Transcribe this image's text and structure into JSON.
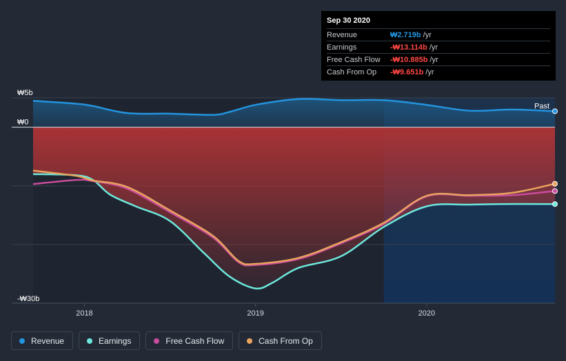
{
  "tooltip": {
    "date": "Sep 30 2020",
    "rows": [
      {
        "label": "Revenue",
        "value": "₩2.719b",
        "unit": "/yr",
        "color": "#2394df"
      },
      {
        "label": "Earnings",
        "value": "-₩13.114b",
        "unit": "/yr",
        "color": "#ff4845"
      },
      {
        "label": "Free Cash Flow",
        "value": "-₩10.885b",
        "unit": "/yr",
        "color": "#ff4845"
      },
      {
        "label": "Cash From Op",
        "value": "-₩9.651b",
        "unit": "/yr",
        "color": "#ff4845"
      }
    ]
  },
  "legend": [
    {
      "label": "Revenue",
      "color": "#2394df"
    },
    {
      "label": "Earnings",
      "color": "#6ce8dc"
    },
    {
      "label": "Free Cash Flow",
      "color": "#c94c9c"
    },
    {
      "label": "Cash From Op",
      "color": "#e9a45e"
    }
  ],
  "chart_data": {
    "type": "line",
    "title": "",
    "xlabel": "",
    "ylabel": "",
    "unit": "KRW billions",
    "y_tick_labels": [
      {
        "value": 5,
        "label": "₩5b"
      },
      {
        "value": 0,
        "label": "₩0"
      },
      {
        "value": -30,
        "label": "-₩30b"
      }
    ],
    "ylim": [
      -30,
      5
    ],
    "xlim": [
      2017.7,
      2020.75
    ],
    "x_ticks": [
      {
        "value": 2018,
        "label": "2018"
      },
      {
        "value": 2019,
        "label": "2019"
      },
      {
        "value": 2020,
        "label": "2020"
      }
    ],
    "past_marker": {
      "label": "Past",
      "start_x": 2019.75
    },
    "series": [
      {
        "name": "Revenue",
        "color": "#2394df",
        "x": [
          2017.7,
          2017.95,
          2018.05,
          2018.25,
          2018.5,
          2018.75,
          2018.85,
          2019.0,
          2019.25,
          2019.5,
          2019.75,
          2020.0,
          2020.25,
          2020.5,
          2020.75
        ],
        "y": [
          4.5,
          4.0,
          3.6,
          2.4,
          2.3,
          2.1,
          2.6,
          3.8,
          4.8,
          4.6,
          4.6,
          3.8,
          2.8,
          3.0,
          2.719
        ]
      },
      {
        "name": "Earnings",
        "color": "#6ce8dc",
        "x": [
          2017.7,
          2017.95,
          2018.05,
          2018.15,
          2018.3,
          2018.5,
          2018.7,
          2018.85,
          2019.0,
          2019.1,
          2019.25,
          2019.5,
          2019.75,
          2020.0,
          2020.25,
          2020.5,
          2020.75
        ],
        "y": [
          -8.0,
          -8.2,
          -9.0,
          -11.5,
          -13.5,
          -16.0,
          -21.5,
          -25.5,
          -27.5,
          -26.5,
          -24.0,
          -22.0,
          -17.0,
          -13.5,
          -13.2,
          -13.1,
          -13.114
        ]
      },
      {
        "name": "Free Cash Flow",
        "color": "#c94c9c",
        "x": [
          2017.7,
          2017.95,
          2018.05,
          2018.25,
          2018.5,
          2018.75,
          2018.9,
          2019.0,
          2019.25,
          2019.5,
          2019.75,
          2020.0,
          2020.25,
          2020.5,
          2020.75
        ],
        "y": [
          -9.7,
          -9.0,
          -9.2,
          -10.5,
          -14.5,
          -18.8,
          -23.0,
          -23.5,
          -22.5,
          -19.8,
          -16.5,
          -11.8,
          -11.7,
          -11.6,
          -10.885
        ]
      },
      {
        "name": "Cash From Op",
        "color": "#e9a45e",
        "x": [
          2017.7,
          2017.95,
          2018.05,
          2018.25,
          2018.5,
          2018.75,
          2018.9,
          2019.0,
          2019.25,
          2019.5,
          2019.75,
          2020.0,
          2020.25,
          2020.5,
          2020.75
        ],
        "y": [
          -7.4,
          -8.3,
          -9.1,
          -10.2,
          -14.2,
          -18.5,
          -22.8,
          -23.3,
          -22.3,
          -19.6,
          -16.3,
          -11.7,
          -11.6,
          -11.2,
          -9.651
        ]
      }
    ]
  }
}
